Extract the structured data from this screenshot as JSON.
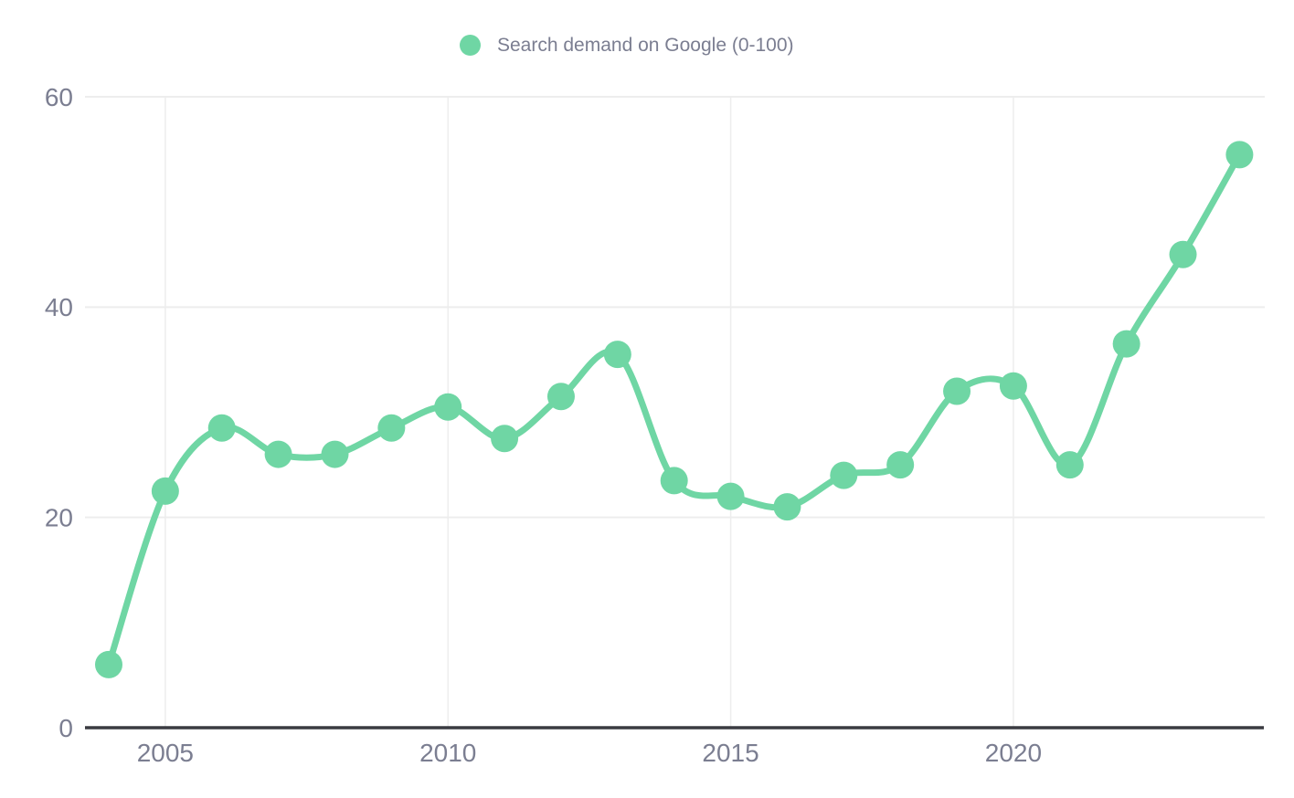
{
  "chart_data": {
    "type": "line",
    "title": "",
    "legend": "Search demand on Google (0-100)",
    "legend_position": "top",
    "x": [
      2004,
      2005,
      2006,
      2007,
      2008,
      2009,
      2010,
      2011,
      2012,
      2013,
      2014,
      2015,
      2016,
      2017,
      2018,
      2019,
      2020,
      2021,
      2022,
      2023,
      2024
    ],
    "series": [
      {
        "name": "Search demand on Google (0-100)",
        "values": [
          6,
          22.5,
          28.5,
          26,
          26,
          28.5,
          30.5,
          27.5,
          31.5,
          35.5,
          23.5,
          22,
          21,
          24,
          25,
          32,
          32.5,
          25,
          36.5,
          45,
          54.5
        ]
      }
    ],
    "xlabel": "",
    "ylabel": "",
    "ylim": [
      0,
      60
    ],
    "yticks": [
      0,
      20,
      40,
      60
    ],
    "xticks": [
      2005,
      2010,
      2015,
      2020
    ],
    "grid": true,
    "marker": "circle",
    "smooth": true,
    "colors": {
      "line": "#6fd6a4",
      "marker": "#6fd6a4",
      "axis_line": "#3a3b41",
      "gridline": "#ededed",
      "tick_label": "#7b7e91",
      "legend_text": "#7b7e91",
      "background": "#ffffff"
    }
  }
}
